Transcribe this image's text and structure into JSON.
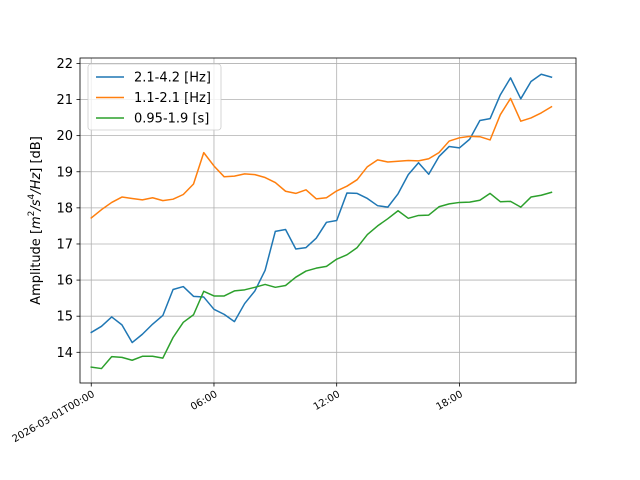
{
  "chart_data": {
    "type": "line",
    "xlabel": "",
    "ylabel": "Amplitude [m²/s⁴/Hz] [dB]",
    "ylabel_parts": {
      "pre": "Amplitude [",
      "m": "m",
      "sup1": "2",
      "mid": "/s",
      "sup2": "4",
      "post": "/Hz] [dB]"
    },
    "x_start": "2026-03-01T00:00",
    "x_step_hours": 0.5,
    "x_range_hours": [
      -0.55,
      23.7
    ],
    "xticks": [
      {
        "hour": 0,
        "label": "2026-03-01T00:00"
      },
      {
        "hour": 6,
        "label": "06:00"
      },
      {
        "hour": 12,
        "label": "12:00"
      },
      {
        "hour": 18,
        "label": "18:00"
      }
    ],
    "ylim": [
      13.15,
      22.15
    ],
    "yticks": [
      14,
      15,
      16,
      17,
      18,
      19,
      20,
      21,
      22
    ],
    "grid": true,
    "legend_position": "top-left",
    "series": [
      {
        "name": "2.1-4.2 [Hz]",
        "color": "#1f77b4",
        "values": [
          14.55,
          14.72,
          14.98,
          14.76,
          14.27,
          14.5,
          14.78,
          15.02,
          15.74,
          15.82,
          15.55,
          15.53,
          15.19,
          15.05,
          14.85,
          15.35,
          15.7,
          16.27,
          17.35,
          17.4,
          16.86,
          16.9,
          17.16,
          17.6,
          17.65,
          18.41,
          18.4,
          18.26,
          18.06,
          18.02,
          18.39,
          18.92,
          19.25,
          18.93,
          19.42,
          19.7,
          19.66,
          19.9,
          20.42,
          20.47,
          21.13,
          21.6,
          21.02,
          21.5,
          21.7,
          21.62
        ]
      },
      {
        "name": "1.1-2.1 [Hz]",
        "color": "#ff7f0e",
        "values": [
          17.72,
          17.95,
          18.15,
          18.3,
          18.26,
          18.22,
          18.28,
          18.2,
          18.24,
          18.37,
          18.66,
          19.53,
          19.16,
          18.86,
          18.88,
          18.94,
          18.92,
          18.84,
          18.7,
          18.46,
          18.4,
          18.5,
          18.25,
          18.28,
          18.47,
          18.6,
          18.78,
          19.14,
          19.33,
          19.27,
          19.29,
          19.31,
          19.3,
          19.36,
          19.53,
          19.85,
          19.94,
          19.98,
          19.97,
          19.88,
          20.58,
          21.03,
          20.4,
          20.49,
          20.63,
          20.8
        ]
      },
      {
        "name": "0.95-1.9 [s]",
        "color": "#2ca02c",
        "values": [
          13.59,
          13.55,
          13.88,
          13.86,
          13.78,
          13.89,
          13.89,
          13.84,
          14.41,
          14.83,
          15.04,
          15.69,
          15.56,
          15.56,
          15.7,
          15.73,
          15.8,
          15.88,
          15.8,
          15.85,
          16.08,
          16.25,
          16.33,
          16.38,
          16.58,
          16.7,
          16.9,
          17.26,
          17.5,
          17.7,
          17.92,
          17.71,
          17.79,
          17.8,
          18.03,
          18.11,
          18.15,
          18.16,
          18.21,
          18.4,
          18.17,
          18.18,
          18.02,
          18.3,
          18.35,
          18.43
        ]
      }
    ]
  }
}
